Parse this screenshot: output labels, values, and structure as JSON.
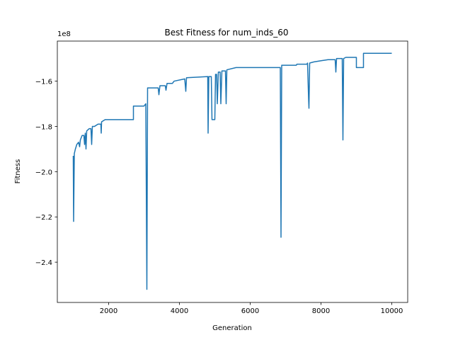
{
  "chart_data": {
    "type": "line",
    "title": "Best Fitness for num_inds_60",
    "x_label": "Generation",
    "y_label": "Fitness",
    "y_offset_label": "1e8",
    "color": "#1f77b4",
    "xlim": [
      550,
      10450
    ],
    "xticks": [
      2000,
      4000,
      6000,
      8000,
      10000
    ],
    "ylim": [
      -2.578,
      -1.423
    ],
    "yticks": [
      {
        "value": -2.4,
        "label": "−2.4"
      },
      {
        "value": -2.2,
        "label": "−2.2"
      },
      {
        "value": -2.0,
        "label": "−2.0"
      },
      {
        "value": -1.8,
        "label": "−1.8"
      },
      {
        "value": -1.6,
        "label": "−1.6"
      }
    ],
    "x": [
      1000,
      1010,
      1030,
      1060,
      1100,
      1150,
      1180,
      1200,
      1250,
      1300,
      1320,
      1340,
      1360,
      1380,
      1450,
      1500,
      1520,
      1540,
      1600,
      1700,
      1780,
      1790,
      1800,
      1900,
      2700,
      2700,
      3000,
      3050,
      3080,
      3100,
      3400,
      3420,
      3450,
      3600,
      3620,
      3650,
      3800,
      3850,
      4150,
      4180,
      4200,
      4800,
      4810,
      4830,
      4900,
      4920,
      5000,
      5020,
      5050,
      5070,
      5100,
      5150,
      5170,
      5200,
      5300,
      5320,
      5340,
      5600,
      6850,
      6870,
      6890,
      7300,
      7320,
      7600,
      7620,
      7650,
      7660,
      7680,
      7800,
      8000,
      8200,
      8400,
      8420,
      8440,
      8600,
      8620,
      8640,
      8700,
      9000,
      9000,
      9200,
      9200,
      10000
    ],
    "y": [
      -1.93,
      -2.22,
      -1.92,
      -1.9,
      -1.88,
      -1.87,
      -1.89,
      -1.86,
      -1.84,
      -1.84,
      -1.88,
      -1.83,
      -1.9,
      -1.82,
      -1.81,
      -1.81,
      -1.88,
      -1.8,
      -1.8,
      -1.79,
      -1.79,
      -1.83,
      -1.78,
      -1.77,
      -1.77,
      -1.71,
      -1.71,
      -1.7,
      -2.52,
      -1.63,
      -1.63,
      -1.66,
      -1.62,
      -1.62,
      -1.64,
      -1.61,
      -1.61,
      -1.6,
      -1.59,
      -1.645,
      -1.585,
      -1.58,
      -1.83,
      -1.58,
      -1.58,
      -1.77,
      -1.77,
      -1.57,
      -1.57,
      -1.7,
      -1.56,
      -1.56,
      -1.7,
      -1.555,
      -1.555,
      -1.7,
      -1.55,
      -1.54,
      -1.54,
      -2.29,
      -1.53,
      -1.53,
      -1.525,
      -1.525,
      -1.52,
      -1.68,
      -1.72,
      -1.52,
      -1.515,
      -1.51,
      -1.505,
      -1.505,
      -1.56,
      -1.5,
      -1.5,
      -1.86,
      -1.5,
      -1.495,
      -1.495,
      -1.54,
      -1.54,
      -1.477,
      -1.477
    ]
  }
}
